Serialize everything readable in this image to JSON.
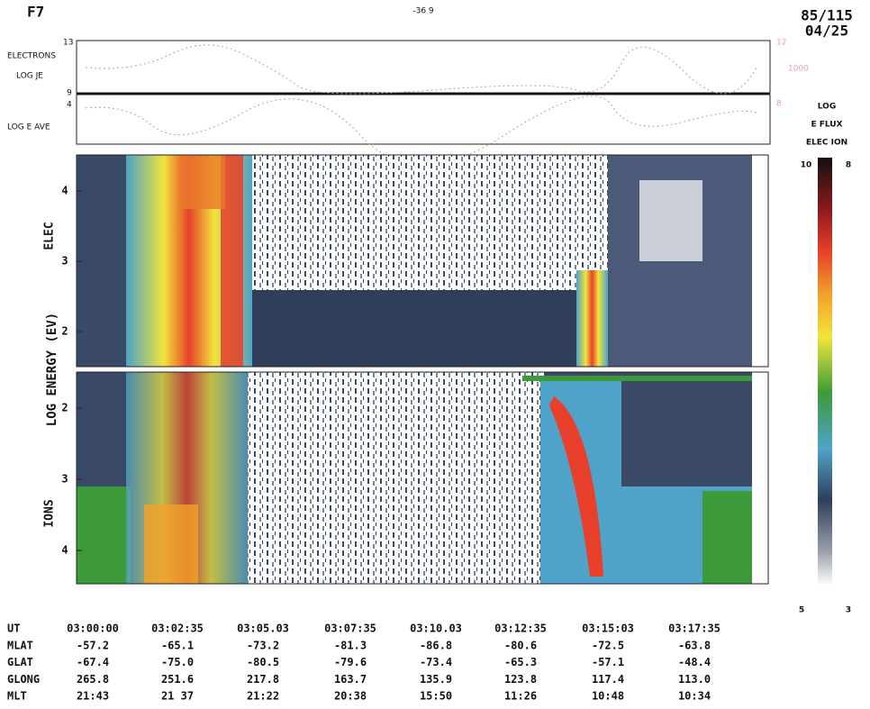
{
  "header": {
    "satellite": "F7",
    "top_center": "-36 9",
    "orbit": "85/115",
    "date": "04/25"
  },
  "flux_panel": {
    "labels": [
      "ELECTRONS",
      "LOG JE"
    ],
    "left_ticks": [
      "13",
      "9"
    ],
    "right_ticks": [
      "12",
      "1000"
    ]
  },
  "energy_panel": {
    "labels": [
      "LOG E AVE"
    ],
    "left_ticks": [
      "4"
    ],
    "right_ticks": [
      "8"
    ]
  },
  "spectrogram": {
    "y_label": "LOG ENERGY (EV)",
    "elec": {
      "label": "ELEC",
      "ticks": [
        4,
        3,
        2
      ]
    },
    "ions": {
      "label": "IONS",
      "ticks": [
        2,
        3,
        4
      ]
    }
  },
  "colorbar": {
    "title": [
      "LOG",
      "E FLUX",
      "ELEC ION"
    ],
    "top": [
      "10",
      "8"
    ],
    "bottom": [
      "5",
      "3"
    ]
  },
  "ephemeris": {
    "rows": [
      [
        "UT",
        "03:00:00",
        "03:02:35",
        "03:05.03",
        "03:07:35",
        "03:10.03",
        "03:12:35",
        "03:15:03",
        "03:17:35"
      ],
      [
        "MLAT",
        "-57.2",
        "-65.1",
        "-73.2",
        "-81.3",
        "-86.8",
        "-80.6",
        "-72.5",
        "-63.8"
      ],
      [
        "GLAT",
        "-67.4",
        "-75.0",
        "-80.5",
        "-79.6",
        "-73.4",
        "-65.3",
        "-57.1",
        "-48.4"
      ],
      [
        "GLONG",
        "265.8",
        "251.6",
        "217.8",
        "163.7",
        "135.9",
        "123.8",
        "117.4",
        "113.0"
      ],
      [
        "MLT",
        "21:43",
        "21 37",
        "21:22",
        "20:38",
        "15:50",
        "11:26",
        "10:48",
        "10:34"
      ]
    ]
  }
}
